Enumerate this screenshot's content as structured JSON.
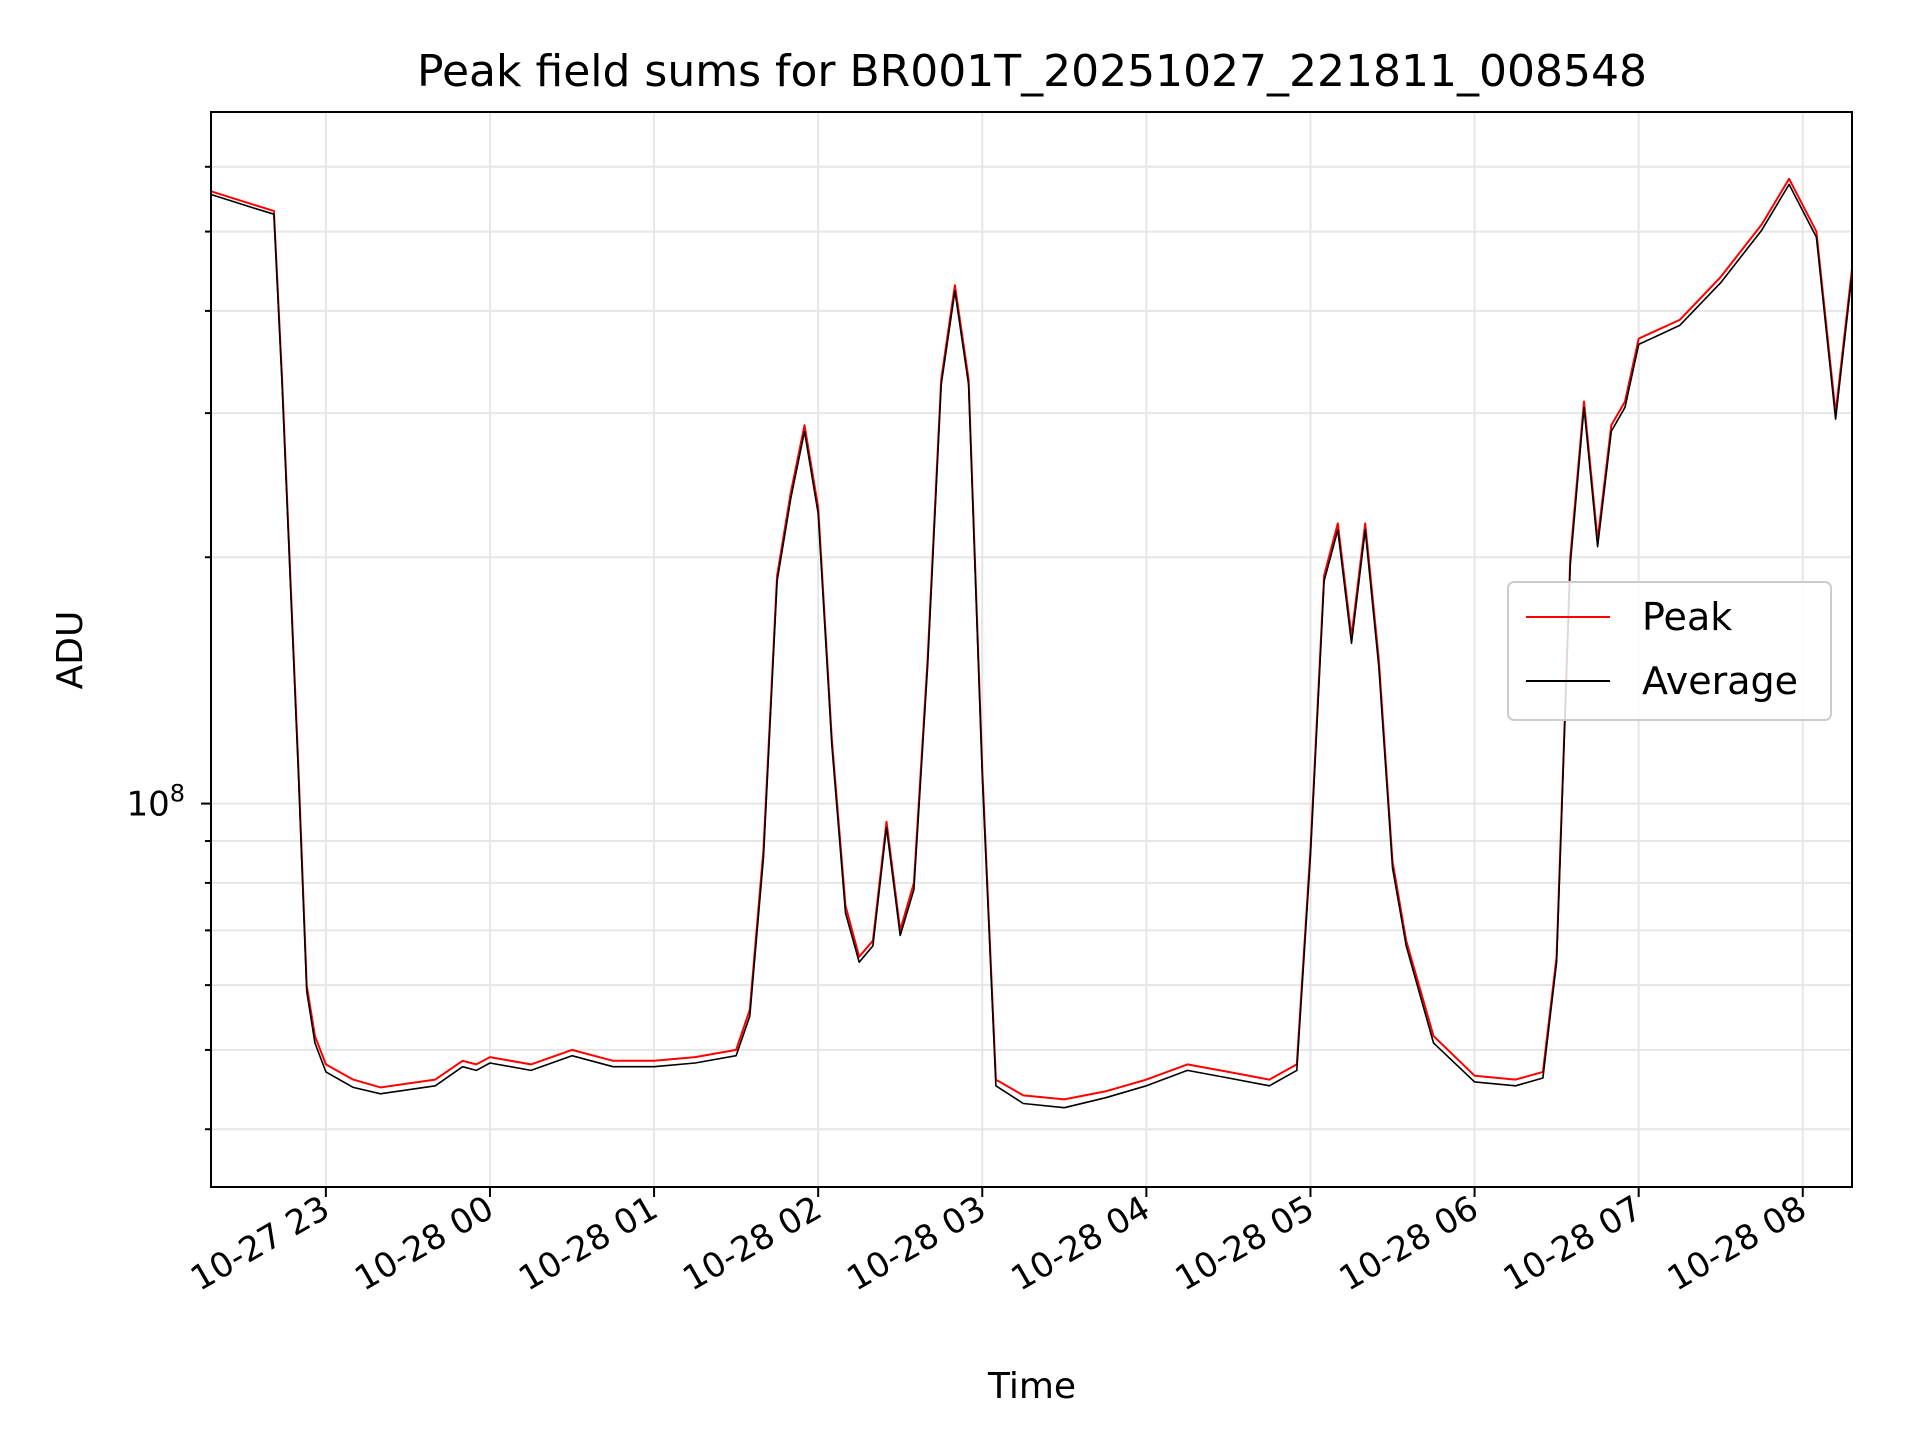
{
  "chart_data": {
    "type": "line",
    "title": "Peak field sums for BR001T_20251027_221811_008548",
    "xlabel": "Time",
    "ylabel": "ADU",
    "yscale": "log",
    "grid": true,
    "legend_position": "center-right",
    "x_ticks": [
      "10-27 23",
      "10-28 00",
      "10-28 01",
      "10-28 02",
      "10-28 03",
      "10-28 04",
      "10-28 05",
      "10-28 06",
      "10-28 07",
      "10-28 08"
    ],
    "y_tick_major_label": "10",
    "y_tick_major_exponent": "8",
    "xlim": [
      "2025-10-27 22:18",
      "2025-10-28 08:18"
    ],
    "ylim": [
      34000000,
      700000000
    ],
    "x": [
      "2025-10-27 22:18",
      "2025-10-27 22:33",
      "2025-10-27 22:41",
      "2025-10-27 22:44",
      "2025-10-27 22:47",
      "2025-10-27 22:50",
      "2025-10-27 22:53",
      "2025-10-27 22:56",
      "2025-10-27 23:00",
      "2025-10-27 23:10",
      "2025-10-27 23:20",
      "2025-10-27 23:30",
      "2025-10-27 23:40",
      "2025-10-27 23:50",
      "2025-10-27 23:55",
      "2025-10-28 00:00",
      "2025-10-28 00:15",
      "2025-10-28 00:30",
      "2025-10-28 00:45",
      "2025-10-28 01:00",
      "2025-10-28 01:15",
      "2025-10-28 01:30",
      "2025-10-28 01:35",
      "2025-10-28 01:40",
      "2025-10-28 01:45",
      "2025-10-28 01:50",
      "2025-10-28 01:55",
      "2025-10-28 02:00",
      "2025-10-28 02:05",
      "2025-10-28 02:10",
      "2025-10-28 02:15",
      "2025-10-28 02:20",
      "2025-10-28 02:25",
      "2025-10-28 02:30",
      "2025-10-28 02:35",
      "2025-10-28 02:40",
      "2025-10-28 02:45",
      "2025-10-28 02:50",
      "2025-10-28 02:55",
      "2025-10-28 03:00",
      "2025-10-28 03:05",
      "2025-10-28 03:15",
      "2025-10-28 03:30",
      "2025-10-28 03:45",
      "2025-10-28 04:00",
      "2025-10-28 04:15",
      "2025-10-28 04:30",
      "2025-10-28 04:45",
      "2025-10-28 04:55",
      "2025-10-28 05:00",
      "2025-10-28 05:05",
      "2025-10-28 05:10",
      "2025-10-28 05:15",
      "2025-10-28 05:20",
      "2025-10-28 05:25",
      "2025-10-28 05:30",
      "2025-10-28 05:35",
      "2025-10-28 05:45",
      "2025-10-28 06:00",
      "2025-10-28 06:15",
      "2025-10-28 06:25",
      "2025-10-28 06:30",
      "2025-10-28 06:35",
      "2025-10-28 06:40",
      "2025-10-28 06:45",
      "2025-10-28 06:50",
      "2025-10-28 06:55",
      "2025-10-28 07:00",
      "2025-10-28 07:15",
      "2025-10-28 07:30",
      "2025-10-28 07:45",
      "2025-10-28 07:55",
      "2025-10-28 08:05",
      "2025-10-28 08:12",
      "2025-10-28 08:18"
    ],
    "series": [
      {
        "name": "Peak",
        "color": "#ff0000",
        "values": [
          560000000,
          540000000,
          530000000,
          330000000,
          190000000,
          110000000,
          60000000,
          52000000,
          48000000,
          46000000,
          45000000,
          45500000,
          46000000,
          48500000,
          48000000,
          49000000,
          48000000,
          50000000,
          48500000,
          48500000,
          49000000,
          50000000,
          56000000,
          88000000,
          190000000,
          240000000,
          290000000,
          230000000,
          120000000,
          75000000,
          65000000,
          68000000,
          95000000,
          70000000,
          80000000,
          150000000,
          330000000,
          430000000,
          330000000,
          110000000,
          46000000,
          44000000,
          43500000,
          44500000,
          46000000,
          48000000,
          47000000,
          46000000,
          48000000,
          88000000,
          190000000,
          220000000,
          160000000,
          220000000,
          150000000,
          85000000,
          68000000,
          52000000,
          46500000,
          46000000,
          47000000,
          65000000,
          200000000,
          310000000,
          210000000,
          290000000,
          310000000,
          370000000,
          390000000,
          440000000,
          510000000,
          580000000,
          500000000,
          300000000,
          450000000
        ]
      },
      {
        "name": "Average",
        "color": "#000000",
        "values": [
          555000000,
          535000000,
          525000000,
          325000000,
          187000000,
          108000000,
          59000000,
          51000000,
          47000000,
          45000000,
          44200000,
          44700000,
          45200000,
          47700000,
          47200000,
          48200000,
          47200000,
          49200000,
          47700000,
          47700000,
          48200000,
          49200000,
          55000000,
          86000000,
          187000000,
          236000000,
          285000000,
          226000000,
          118000000,
          73500000,
          64000000,
          67000000,
          93500000,
          69000000,
          78500000,
          147000000,
          325000000,
          423000000,
          325000000,
          108000000,
          45200000,
          43000000,
          42500000,
          43700000,
          45200000,
          47200000,
          46200000,
          45200000,
          47200000,
          86500000,
          187000000,
          216000000,
          157000000,
          216000000,
          147000000,
          83500000,
          67000000,
          51000000,
          45700000,
          45200000,
          46200000,
          64000000,
          196000000,
          305000000,
          206000000,
          285000000,
          305000000,
          364000000,
          384000000,
          433000000,
          502000000,
          571000000,
          492000000,
          295000000,
          443000000
        ]
      }
    ]
  }
}
